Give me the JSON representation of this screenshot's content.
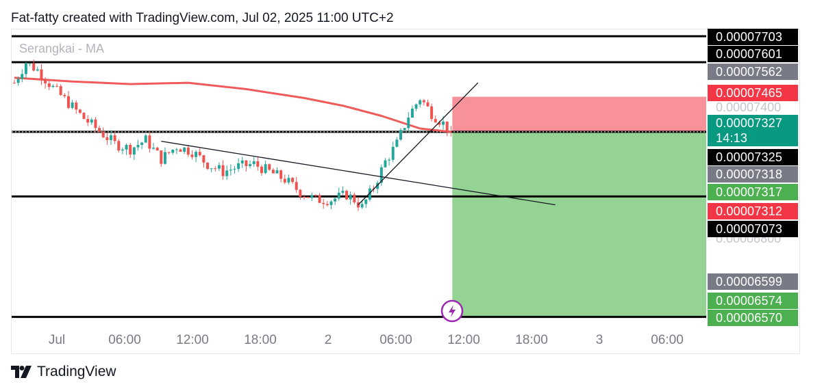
{
  "header": {
    "attribution": "Fat-fatty created with TradingView.com, Jul 02, 2025 11:00 UTC+2"
  },
  "footer": {
    "brand": "TradingView",
    "logo_icon": "tradingview-logo-icon"
  },
  "legend": {
    "indicator": "Serangkai - MA"
  },
  "icons": {
    "event": "lightning-icon"
  },
  "colors": {
    "up": "#26a69a",
    "down": "#ef5350",
    "ma": "#f05a5a",
    "stop_zone": "#f7929a",
    "target_zone": "#94d394"
  },
  "chart_data": {
    "type": "candlestick",
    "x_ticks": [
      "Jul",
      "06:00",
      "12:00",
      "18:00",
      "2",
      "06:00",
      "12:00",
      "18:00",
      "3",
      "06:00"
    ],
    "y_range": [
      6.555e-05,
      7.73e-05
    ],
    "price_labels": [
      {
        "value": "0.00007703",
        "color": "#000000"
      },
      {
        "value": "0.00007601",
        "color": "#000000"
      },
      {
        "value": "0.00007562",
        "color": "#787b86"
      },
      {
        "value": "0.00007465",
        "color": "#f23645"
      },
      {
        "value": "0.00007327",
        "color": "#089981",
        "countdown": "14:13"
      },
      {
        "value": "0.00007325",
        "color": "#000000"
      },
      {
        "value": "0.00007318",
        "color": "#787b86"
      },
      {
        "value": "0.00007317",
        "color": "#4caf50"
      },
      {
        "value": "0.00007312",
        "color": "#f23645"
      },
      {
        "value": "0.00007073",
        "color": "#000000"
      },
      {
        "value": "0.00006599",
        "color": "#787b86"
      },
      {
        "value": "0.00006574",
        "color": "#4caf50"
      },
      {
        "value": "0.00006570",
        "color": "#4caf50"
      }
    ],
    "ghost_labels": [
      "0.00007400",
      "0.00006800"
    ],
    "horizontal_levels": [
      7.703e-05,
      7.601e-05,
      7.327e-05,
      7.073e-05,
      6.599e-05
    ],
    "position": {
      "entry": 7.327e-05,
      "stop": 7.465e-05,
      "target": 6.599e-05
    },
    "close_path": [
      [
        0,
        7.52e-05
      ],
      [
        3,
        7.6e-05
      ],
      [
        6,
        7.57e-05
      ],
      [
        10,
        7.5e-05
      ],
      [
        14,
        7.44e-05
      ],
      [
        18,
        7.38e-05
      ],
      [
        22,
        7.33e-05
      ],
      [
        26,
        7.28e-05
      ],
      [
        30,
        7.26e-05
      ],
      [
        34,
        7.295e-05
      ],
      [
        38,
        7.22e-05
      ],
      [
        42,
        7.27e-05
      ],
      [
        46,
        7.25e-05
      ],
      [
        50,
        7.2e-05
      ],
      [
        54,
        7.17e-05
      ],
      [
        58,
        7.19e-05
      ],
      [
        62,
        7.2e-05
      ],
      [
        66,
        7.17e-05
      ],
      [
        70,
        7.14e-05
      ],
      [
        74,
        7.09e-05
      ],
      [
        78,
        7.06e-05
      ],
      [
        82,
        7.06e-05
      ],
      [
        86,
        7.08e-05
      ],
      [
        88,
        7.06e-05
      ],
      [
        90,
        7.03e-05
      ],
      [
        93,
        7.11e-05
      ],
      [
        96,
        7.21e-05
      ],
      [
        99,
        7.28e-05
      ],
      [
        102,
        7.39e-05
      ],
      [
        105,
        7.46e-05
      ],
      [
        108,
        7.4e-05
      ],
      [
        111,
        7.36e-05
      ],
      [
        113,
        7.327e-05
      ]
    ],
    "ma": [
      [
        0,
        7.54e-05
      ],
      [
        15,
        7.525e-05
      ],
      [
        30,
        7.515e-05
      ],
      [
        45,
        7.52e-05
      ],
      [
        60,
        7.495e-05
      ],
      [
        75,
        7.46e-05
      ],
      [
        85,
        7.43e-05
      ],
      [
        95,
        7.39e-05
      ],
      [
        105,
        7.34e-05
      ],
      [
        113,
        7.327e-05
      ]
    ],
    "trendlines": [
      {
        "from": [
          38,
          7.29e-05
        ],
        "to": [
          140,
          7.04e-05
        ]
      },
      {
        "from": [
          89,
          7.04e-05
        ],
        "to": [
          120,
          7.52e-05
        ]
      }
    ]
  }
}
